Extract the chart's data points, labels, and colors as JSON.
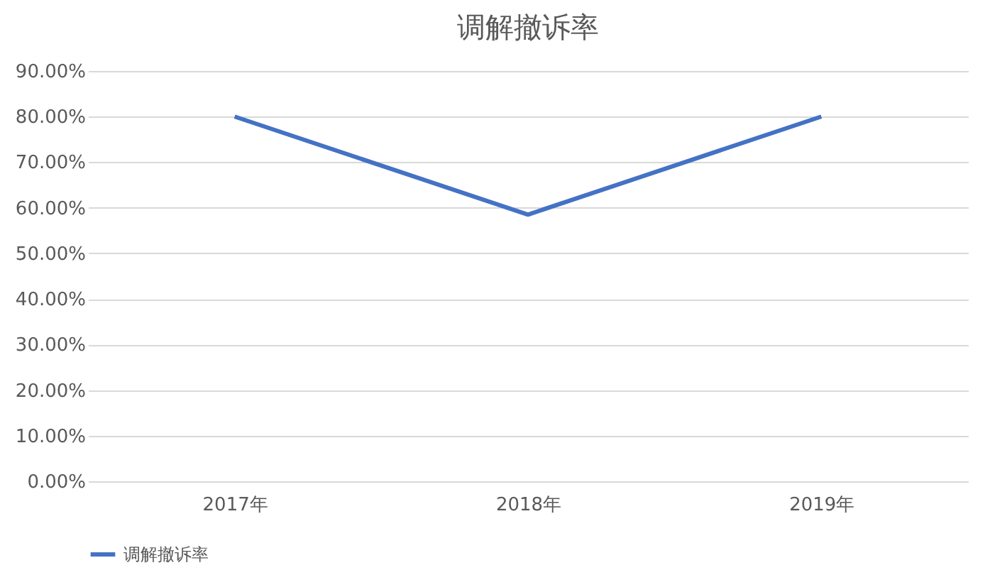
{
  "chart_data": {
    "type": "line",
    "title": "调解撤诉率",
    "categories": [
      "2017年",
      "2018年",
      "2019年"
    ],
    "series": [
      {
        "name": "调解撤诉率",
        "color": "#4472c4",
        "values": [
          80,
          58.5,
          80
        ]
      }
    ],
    "ylim": [
      0,
      90
    ],
    "yticks": [
      {
        "value": 0,
        "label": "0.00%"
      },
      {
        "value": 10,
        "label": "10.00%"
      },
      {
        "value": 20,
        "label": "20.00%"
      },
      {
        "value": 30,
        "label": "30.00%"
      },
      {
        "value": 40,
        "label": "40.00%"
      },
      {
        "value": 50,
        "label": "50.00%"
      },
      {
        "value": 60,
        "label": "60.00%"
      },
      {
        "value": 70,
        "label": "70.00%"
      },
      {
        "value": 80,
        "label": "80.00%"
      },
      {
        "value": 90,
        "label": "90.00%"
      }
    ],
    "grid": "y",
    "legend": "bottom",
    "marker": "none",
    "line_style": "solid"
  }
}
